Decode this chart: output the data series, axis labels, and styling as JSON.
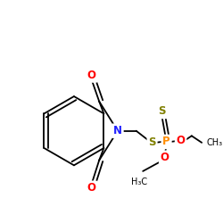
{
  "bg_color": "#ffffff",
  "bond_color": "#000000",
  "N_color": "#2020ff",
  "O_color": "#ff0000",
  "S_color": "#808000",
  "P_color": "#ff8c00",
  "line_width": 1.3,
  "figsize": [
    2.5,
    2.5
  ],
  "dpi": 100,
  "xlim": [
    0,
    250
  ],
  "ylim": [
    0,
    250
  ]
}
